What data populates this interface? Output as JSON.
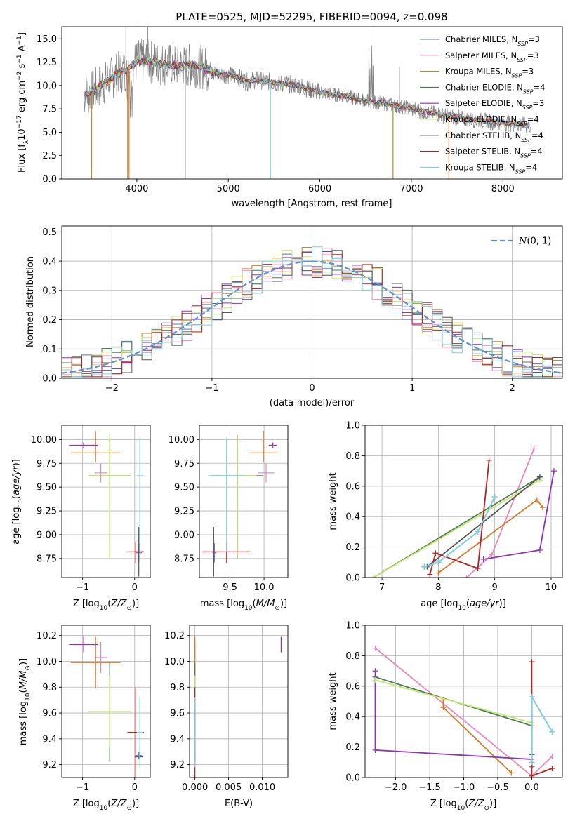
{
  "figure": {
    "title": "PLATE=0525, MJD=52295, FIBERID=0094, z=0.098"
  },
  "chart_data": [
    {
      "id": "spectrum",
      "type": "line",
      "xlabel": "wavelength [Angstrom, rest frame]",
      "ylabel": "Flux [f_λ10^-17 erg cm^-2 s^-1 A^-1]",
      "xlim": [
        3180,
        8650
      ],
      "ylim": [
        0,
        16.3
      ],
      "xticks": [
        4000,
        5000,
        6000,
        7000,
        8000
      ],
      "yticks": [
        0.0,
        2.5,
        5.0,
        7.5,
        10.0,
        12.5,
        15.0
      ],
      "grid": false,
      "legend_position": "top-right",
      "continuum": [
        [
          3420,
          9.0
        ],
        [
          3500,
          9.2
        ],
        [
          3600,
          10.0
        ],
        [
          3700,
          10.6
        ],
        [
          3800,
          11.4
        ],
        [
          3900,
          11.7
        ],
        [
          4000,
          12.6
        ],
        [
          4100,
          12.6
        ],
        [
          4200,
          12.5
        ],
        [
          4300,
          12.2
        ],
        [
          4400,
          12.2
        ],
        [
          4500,
          12.0
        ],
        [
          4600,
          12.2
        ],
        [
          4700,
          12.0
        ],
        [
          4800,
          11.6
        ],
        [
          4900,
          11.2
        ],
        [
          5000,
          11.1
        ],
        [
          5100,
          10.9
        ],
        [
          5200,
          10.4
        ],
        [
          5300,
          10.6
        ],
        [
          5400,
          10.5
        ],
        [
          5500,
          10.3
        ],
        [
          5600,
          10.2
        ],
        [
          5700,
          10.1
        ],
        [
          5800,
          9.9
        ],
        [
          5900,
          9.5
        ],
        [
          6000,
          9.3
        ],
        [
          6100,
          9.1
        ],
        [
          6200,
          9.0
        ],
        [
          6300,
          8.9
        ],
        [
          6400,
          8.5
        ],
        [
          6500,
          8.4
        ],
        [
          6600,
          8.2
        ],
        [
          6700,
          8.1
        ],
        [
          6800,
          7.9
        ],
        [
          6900,
          7.7
        ],
        [
          7000,
          7.5
        ],
        [
          7100,
          7.3
        ],
        [
          7200,
          7.1
        ],
        [
          7300,
          6.9
        ],
        [
          7400,
          6.7
        ],
        [
          7500,
          6.6
        ],
        [
          7600,
          6.4
        ],
        [
          7700,
          6.3
        ],
        [
          7800,
          6.2
        ],
        [
          7900,
          6.1
        ],
        [
          8000,
          6.0
        ],
        [
          8100,
          5.9
        ],
        [
          8200,
          5.8
        ],
        [
          8300,
          5.7
        ]
      ],
      "series": [
        {
          "name": "Chabrier MILES, N_SSP=3",
          "label_main": "Chabrier MILES, N",
          "label_sub": "SSP",
          "label_tail": "=3",
          "color": "#5a6fcf"
        },
        {
          "name": "Salpeter MILES, N_SSP=3",
          "label_main": "Salpeter MILES, N",
          "label_sub": "SSP",
          "label_tail": "=3",
          "color": "#e887b8"
        },
        {
          "name": "Kroupa MILES, N_SSP=3",
          "label_main": "Kroupa MILES, N",
          "label_sub": "SSP",
          "label_tail": "=3",
          "color": "#c08a2c"
        },
        {
          "name": "Chabrier ELODIE, N_SSP=4",
          "label_main": "Chabrier ELODIE, N",
          "label_sub": "SSP",
          "label_tail": "=4",
          "color": "#4a7a55"
        },
        {
          "name": "Salpeter ELODIE, N_SSP=3",
          "label_main": "Salpeter ELODIE, N",
          "label_sub": "SSP",
          "label_tail": "=3",
          "color": "#8e32b8"
        },
        {
          "name": "Kroupa ELODIE, N_SSP=4",
          "label_main": "Kroupa ELODIE, N",
          "label_sub": "SSP",
          "label_tail": "=4",
          "color": "#c5e86c"
        },
        {
          "name": "Chabrier STELIB, N_SSP=4",
          "label_main": "Chabrier STELIB, N",
          "label_sub": "SSP",
          "label_tail": "=4",
          "color": "#555555"
        },
        {
          "name": "Salpeter STELIB, N_SSP=4",
          "label_main": "Salpeter STELIB, N",
          "label_sub": "SSP",
          "label_tail": "=4",
          "color": "#b22222"
        },
        {
          "name": "Kroupa STELIB, N_SSP=4",
          "label_main": "Kroupa STELIB, N",
          "label_sub": "SSP",
          "label_tail": "=4",
          "color": "#7fd3dc"
        }
      ],
      "data_color": "#808080"
    },
    {
      "id": "residuals",
      "type": "step",
      "xlabel": "(data-model)/error",
      "ylabel": "Normed distribution",
      "xlim": [
        -2.5,
        2.5
      ],
      "ylim": [
        0,
        0.52
      ],
      "xticks": [
        -2,
        -1,
        0,
        1,
        2
      ],
      "yticks": [
        0.0,
        0.1,
        0.2,
        0.3,
        0.4,
        0.5
      ],
      "grid": true,
      "legend_position": "top-right",
      "reference": {
        "label": "N(0,1)",
        "mean": 0,
        "sigma": 1,
        "color": "#5b8fd6"
      },
      "bin_edges_start": -2.5,
      "bin_width": 0.1
    },
    {
      "id": "age_vs_Z",
      "type": "errorbar",
      "xlabel": "Z [log10(Z/Z_sun)]",
      "ylabel": "age [log10(age/yr)]",
      "xlim": [
        -1.4,
        0.3
      ],
      "ylim": [
        8.55,
        10.15
      ],
      "xticks": [
        -1,
        0
      ],
      "yticks": [
        8.75,
        9.0,
        9.25,
        9.5,
        9.75,
        10.0
      ],
      "grid": true
    },
    {
      "id": "age_vs_mass",
      "type": "errorbar",
      "xlabel": "mass [log10(M/M_sun)]",
      "ylabel": "",
      "xlim": [
        9.05,
        10.35
      ],
      "ylim": [
        8.55,
        10.15
      ],
      "xticks": [
        9.5,
        10.0
      ],
      "yticks": [
        8.75,
        9.0,
        9.25,
        9.5,
        9.75,
        10.0
      ],
      "grid": true
    },
    {
      "id": "mass_weight_vs_age",
      "type": "line",
      "xlabel": "age [log10(age/yr)]",
      "ylabel": "mass weight",
      "xlim": [
        6.7,
        10.2
      ],
      "ylim": [
        0,
        1.0
      ],
      "xticks": [
        7,
        8,
        9,
        10
      ],
      "yticks": [
        0.0,
        0.2,
        0.4,
        0.6,
        0.8,
        1.0
      ],
      "grid": true,
      "series": [
        {
          "name": "Chabrier MILES",
          "color": "#5a6fcf",
          "x": [
            7.75,
            8.0,
            8.7,
            9.0
          ],
          "y": [
            0.07,
            0.1,
            0.3,
            0.53
          ]
        },
        {
          "name": "Salpeter MILES",
          "color": "#e887b8",
          "x": [
            8.5,
            8.95,
            9.7
          ],
          "y": [
            0.0,
            0.15,
            0.85
          ]
        },
        {
          "name": "Kroupa MILES",
          "color": "#d07a2a",
          "x": [
            8.0,
            9.75,
            9.85
          ],
          "y": [
            0.03,
            0.51,
            0.46
          ]
        },
        {
          "name": "Chabrier ELODIE",
          "color": "#4a7a55",
          "x": [
            6.85,
            9.8
          ],
          "y": [
            0.0,
            0.66
          ]
        },
        {
          "name": "Salpeter ELODIE",
          "color": "#8e32b8",
          "x": [
            8.8,
            9.8,
            10.05
          ],
          "y": [
            0.12,
            0.18,
            0.7
          ]
        },
        {
          "name": "Kroupa ELODIE",
          "color": "#c5e86c",
          "x": [
            6.85,
            9.8
          ],
          "y": [
            0.0,
            0.64
          ]
        },
        {
          "name": "Chabrier STELIB",
          "color": "#555555",
          "x": [
            7.8,
            9.8
          ],
          "y": [
            0.07,
            0.66
          ]
        },
        {
          "name": "Salpeter STELIB",
          "color": "#b22222",
          "x": [
            7.85,
            7.95,
            8.7,
            8.9
          ],
          "y": [
            0.02,
            0.16,
            0.06,
            0.77
          ]
        },
        {
          "name": "Kroupa STELIB",
          "color": "#7fd3dc",
          "x": [
            7.75,
            8.0,
            8.7,
            9.0
          ],
          "y": [
            0.07,
            0.1,
            0.3,
            0.53
          ]
        }
      ]
    },
    {
      "id": "mass_vs_Z",
      "type": "errorbar",
      "xlabel": "Z [log10(Z/Z_sun)]",
      "ylabel": "mass [log10(M/M_sun)]",
      "xlim": [
        -1.4,
        0.3
      ],
      "ylim": [
        9.1,
        10.28
      ],
      "xticks": [
        -1,
        0
      ],
      "yticks": [
        9.2,
        9.4,
        9.6,
        9.8,
        10.0,
        10.2
      ],
      "grid": true
    },
    {
      "id": "mass_vs_ebv",
      "type": "errorbar",
      "xlabel": "E(B-V)",
      "ylabel": "",
      "xlim": [
        -0.0008,
        0.0138
      ],
      "ylim": [
        9.1,
        10.28
      ],
      "xticks": [
        0.0,
        0.005,
        0.01
      ],
      "xticklabels": [
        "0.000",
        "0.005",
        "0.010"
      ],
      "yticks": [
        9.2,
        9.4,
        9.6,
        9.8,
        10.0,
        10.2
      ],
      "grid": true
    },
    {
      "id": "mass_weight_vs_Z",
      "type": "line",
      "xlabel": "Z [log10(Z/Z_sun)]",
      "ylabel": "mass weight",
      "xlim": [
        -2.45,
        0.45
      ],
      "ylim": [
        0,
        1.0
      ],
      "xticks": [
        -2.0,
        -1.5,
        -1.0,
        -0.5,
        0.0
      ],
      "yticks": [
        0.0,
        0.2,
        0.4,
        0.6,
        0.8,
        1.0
      ],
      "grid": true,
      "series": [
        {
          "name": "Chabrier MILES",
          "color": "#5a6fcf",
          "x": [
            0.0,
            0.0,
            0.3
          ],
          "y": [
            0.1,
            0.53,
            0.3
          ]
        },
        {
          "name": "Salpeter MILES",
          "color": "#e887b8",
          "x": [
            -2.3,
            0.0,
            0.3
          ],
          "y": [
            0.85,
            0.01,
            0.14
          ]
        },
        {
          "name": "Kroupa MILES",
          "color": "#d07a2a",
          "x": [
            -1.3,
            -1.3,
            -0.3
          ],
          "y": [
            0.51,
            0.46,
            0.03
          ]
        },
        {
          "name": "Chabrier ELODIE",
          "color": "#4a7a55",
          "x": [
            -2.3,
            0.0
          ],
          "y": [
            0.66,
            0.34
          ]
        },
        {
          "name": "Salpeter ELODIE",
          "color": "#8e32b8",
          "x": [
            -2.3,
            -2.3,
            0.0
          ],
          "y": [
            0.7,
            0.18,
            0.12
          ]
        },
        {
          "name": "Kroupa ELODIE",
          "color": "#c5e86c",
          "x": [
            -2.3,
            0.0
          ],
          "y": [
            0.64,
            0.36
          ]
        },
        {
          "name": "Chabrier STELIB",
          "color": "#555555",
          "x": [
            0.0,
            0.0
          ],
          "y": [
            0.07,
            0.15
          ]
        },
        {
          "name": "Salpeter STELIB",
          "color": "#b22222",
          "x": [
            0.0,
            0.0,
            0.3
          ],
          "y": [
            0.76,
            0.01,
            0.06
          ]
        },
        {
          "name": "Kroupa STELIB",
          "color": "#7fd3dc",
          "x": [
            0.0,
            0.0,
            0.3
          ],
          "y": [
            0.1,
            0.53,
            0.3
          ]
        }
      ]
    }
  ],
  "errorbars": {
    "points": [
      {
        "color": "#5a6fcf",
        "Z": [
          0.08,
          0.06
        ],
        "age": [
          8.81,
          0.1,
          0.1
        ],
        "mass": [
          9.27,
          0.03
        ],
        "ebv": [
          0.0,
          0.0
        ]
      },
      {
        "color": "#e887b8",
        "Z": [
          -0.65,
          0.12
        ],
        "age": [
          9.65,
          0.1,
          0.1
        ],
        "mass": [
          10.03,
          0.12
        ],
        "ebv": [
          0.0,
          0.0
        ]
      },
      {
        "color": "#d07a2a",
        "Z": [
          -0.75,
          0.48
        ],
        "age": [
          9.86,
          0.1,
          0.23
        ],
        "mass": [
          9.99,
          0.2
        ],
        "ebv": [
          0.0,
          0.0
        ]
      },
      {
        "color": "#4a7a55",
        "Z": [
          -0.48,
          0.4
        ],
        "age": [
          9.62,
          0.87,
          0.43
        ],
        "mass": [
          9.61,
          0.38
        ],
        "ebv": [
          0.0,
          0.0
        ]
      },
      {
        "color": "#8e32b8",
        "Z": [
          -0.98,
          0.28
        ],
        "age": [
          9.94,
          0.03,
          0.03
        ],
        "mass": [
          10.13,
          0.06
        ],
        "ebv": [
          0.0128,
          0.0
        ]
      },
      {
        "color": "#c5e86c",
        "Z": [
          -0.48,
          0.4
        ],
        "age": [
          9.62,
          0.87,
          0.43
        ],
        "mass": [
          9.61,
          0.28
        ],
        "ebv": [
          0.0,
          0.0
        ]
      },
      {
        "color": "#555555",
        "Z": [
          0.08,
          0.08
        ],
        "age": [
          8.82,
          0.26,
          0.26
        ],
        "mass": [
          9.26,
          0.0
        ],
        "ebv": [
          0.0,
          0.0
        ]
      },
      {
        "color": "#b22222",
        "Z": [
          0.02,
          0.16
        ],
        "age": [
          8.82,
          0.12,
          0.1
        ],
        "mass": [
          9.45,
          0.35
        ],
        "ebv": [
          0.0,
          0.0
        ]
      },
      {
        "color": "#7fd3dc",
        "Z": [
          0.1,
          0.06
        ],
        "age": [
          9.62,
          0.8,
          0.4
        ],
        "mass": [
          9.45,
          0.27
        ],
        "ebv": [
          0.0,
          0.0
        ]
      }
    ]
  }
}
